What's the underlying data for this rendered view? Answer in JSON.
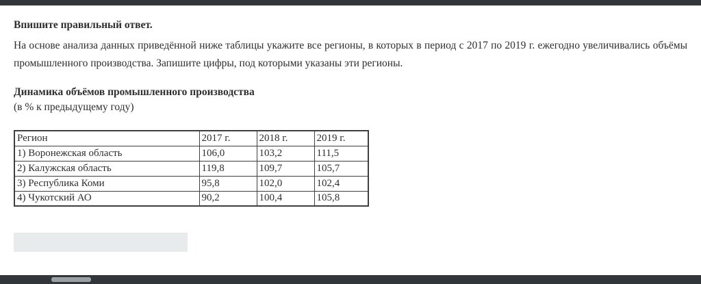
{
  "page": {
    "title": "Впишите правильный ответ.",
    "task_text": "На основе анализа данных приведённой ниже таблицы укажите все регионы, в которых в период с 2017 по 2019 г. ежегодно увеличивались объёмы промышленного производства. Запишите цифры, под которыми указаны эти регионы.",
    "table_title": "Динамика объёмов промышленного производства",
    "table_subtitle": "(в % к предыдущему году)"
  },
  "table": {
    "headers": [
      "Регион",
      "2017 г.",
      "2018 г.",
      "2019 г."
    ],
    "rows": [
      [
        "1) Воронежская область",
        "106,0",
        "103,2",
        "111,5"
      ],
      [
        "2) Калужская область",
        "119,8",
        "109,7",
        "105,7"
      ],
      [
        "3) Республика Коми",
        "95,8",
        "102,0",
        "102,4"
      ],
      [
        "4) Чукотский АО",
        "90,2",
        "100,4",
        "105,8"
      ]
    ]
  },
  "answer_input": {
    "value": "",
    "placeholder": ""
  },
  "colors": {
    "text": "#2e2e2e",
    "table_border": "#3e3e3e",
    "input_background": "#e8ebec",
    "chrome_bar": "#32363a",
    "scroll_thumb": "#9aa1a4"
  }
}
